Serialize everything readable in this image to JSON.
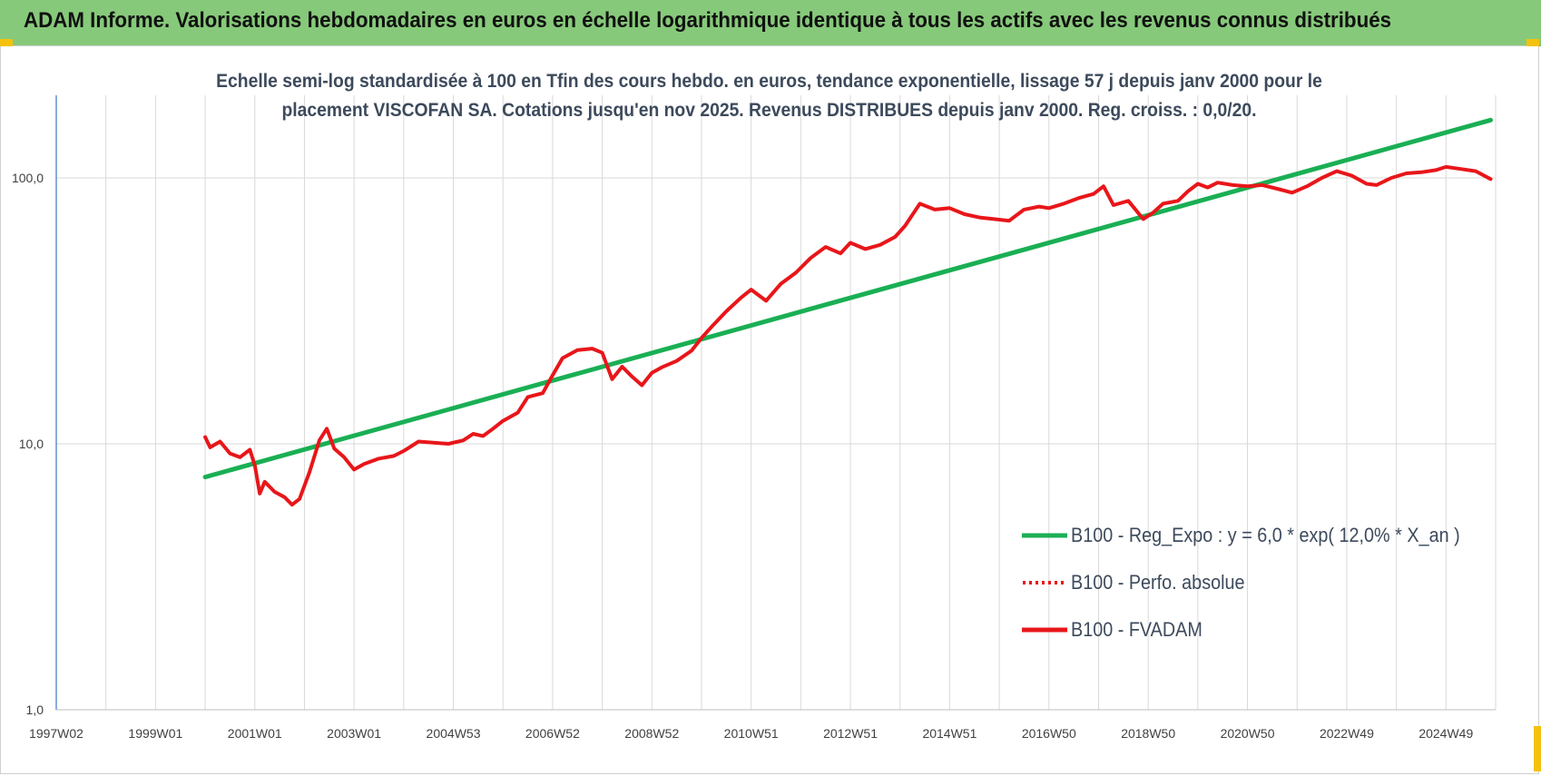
{
  "banner": {
    "title": "ADAM Informe. Valorisations hebdomadaires en euros en échelle logarithmique identique à tous les actifs avec les revenus connus distribués"
  },
  "colors": {
    "banner": "#86c97a",
    "accent_corners": "#f4c20d",
    "regression": "#1aaf54",
    "fvadam": "#e8161a",
    "perfo": "#e8161a",
    "text": "#3d4a5c",
    "grid": "#d9d9d9"
  },
  "chart_data": {
    "type": "line",
    "title_line1": "Echelle semi-log standardisée à 100 en Tfin des cours hebdo. en euros, tendance exponentielle, lissage 57 j depuis janv 2000 pour le",
    "title_line2": "placement VISCOFAN SA. Cotations jusqu'en nov 2025. Revenus DISTRIBUES depuis janv 2000. Reg. croiss. : 0,0/20.",
    "y_scale": "log",
    "ylim": [
      1,
      200
    ],
    "y_ticks": [
      1,
      10,
      100
    ],
    "y_tick_labels": [
      "1,0",
      "10,0",
      "100,0"
    ],
    "xlim": [
      1997.0,
      2026.0
    ],
    "x_tick_labels": [
      "1997W02",
      "1999W01",
      "2001W01",
      "2003W01",
      "2004W53",
      "2006W52",
      "2008W52",
      "2010W51",
      "2012W51",
      "2014W51",
      "2016W50",
      "2018W50",
      "2020W50",
      "2022W49",
      "2024W49"
    ],
    "grid": true,
    "legend_position": "lower-right",
    "series": [
      {
        "name": "B100 - Reg_Expo : y = 6,0 * exp( 12,0% *  X_an )",
        "style": "solid-thick",
        "color": "#1aaf54",
        "x": [
          2000.0,
          2025.9
        ],
        "y": [
          7.5,
          165
        ]
      },
      {
        "name": "B100 - Perfo. absolue",
        "style": "dotted",
        "color": "#e8161a",
        "x": [],
        "y": []
      },
      {
        "name": "B100 - FVADAM",
        "style": "solid-thick",
        "color": "#e8161a",
        "x": [
          2000.0,
          2000.1,
          2000.3,
          2000.5,
          2000.7,
          2000.9,
          2001.0,
          2001.1,
          2001.2,
          2001.4,
          2001.6,
          2001.75,
          2001.9,
          2002.1,
          2002.3,
          2002.45,
          2002.6,
          2002.8,
          2003.0,
          2003.2,
          2003.5,
          2003.8,
          2004.0,
          2004.3,
          2004.6,
          2004.9,
          2005.2,
          2005.4,
          2005.6,
          2005.8,
          2006.0,
          2006.3,
          2006.5,
          2006.8,
          2007.0,
          2007.2,
          2007.5,
          2007.8,
          2008.0,
          2008.2,
          2008.4,
          2008.6,
          2008.8,
          2009.0,
          2009.2,
          2009.5,
          2009.8,
          2010.0,
          2010.2,
          2010.5,
          2010.8,
          2011.0,
          2011.3,
          2011.6,
          2011.9,
          2012.2,
          2012.5,
          2012.8,
          2013.0,
          2013.3,
          2013.6,
          2013.9,
          2014.1,
          2014.4,
          2014.7,
          2015.0,
          2015.3,
          2015.6,
          2015.9,
          2016.2,
          2016.5,
          2016.8,
          2017.0,
          2017.3,
          2017.6,
          2017.9,
          2018.1,
          2018.3,
          2018.6,
          2018.9,
          2019.1,
          2019.3,
          2019.6,
          2019.8,
          2020.0,
          2020.2,
          2020.4,
          2020.7,
          2021.0,
          2021.3,
          2021.6,
          2021.9,
          2022.2,
          2022.5,
          2022.8,
          2023.1,
          2023.4,
          2023.6,
          2023.9,
          2024.2,
          2024.5,
          2024.8,
          2025.0,
          2025.3,
          2025.6,
          2025.9
        ],
        "y": [
          10.6,
          9.7,
          10.2,
          9.2,
          8.9,
          9.5,
          8.3,
          6.5,
          7.2,
          6.6,
          6.3,
          5.9,
          6.2,
          7.8,
          10.3,
          11.4,
          9.6,
          8.9,
          8.0,
          8.4,
          8.8,
          9.0,
          9.4,
          10.2,
          10.1,
          10.0,
          10.3,
          10.9,
          10.7,
          11.4,
          12.2,
          13.1,
          15.0,
          15.5,
          18.1,
          21.0,
          22.5,
          22.8,
          22.0,
          17.5,
          19.5,
          17.9,
          16.6,
          18.5,
          19.4,
          20.5,
          22.4,
          25.0,
          27.5,
          31.5,
          35.5,
          38.0,
          34.5,
          40.0,
          44.0,
          50.0,
          55.0,
          52.0,
          57.0,
          54.0,
          56.0,
          60.0,
          66.0,
          80.0,
          76.0,
          77.0,
          73.0,
          71.0,
          70.0,
          69.0,
          76.0,
          78.0,
          77.0,
          80.0,
          84.0,
          87.0,
          93.0,
          79.0,
          82.0,
          70.0,
          74.0,
          80.0,
          82.0,
          89.0,
          95.0,
          92.0,
          96.0,
          94.0,
          93.0,
          94.0,
          91.0,
          88.0,
          93.0,
          100.0,
          106.0,
          102.0,
          95.0,
          94.0,
          100.0,
          104.0,
          105.0,
          107.0,
          110.0,
          108.0,
          106.0,
          99.0
        ]
      }
    ]
  }
}
